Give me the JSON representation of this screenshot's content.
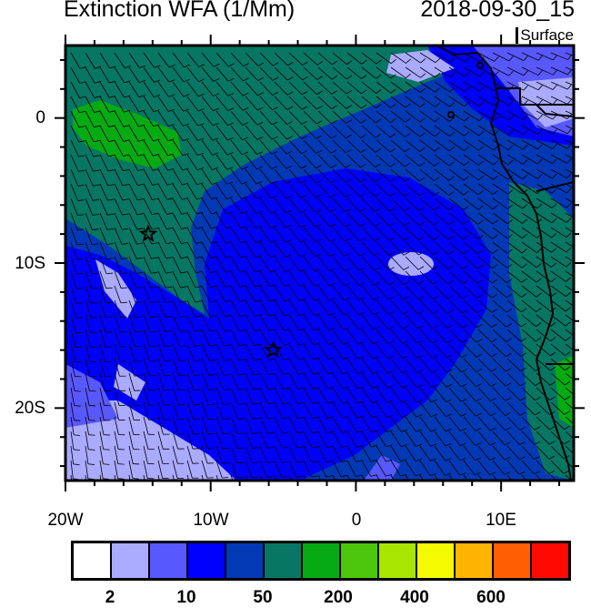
{
  "header": {
    "title": "Extinction WFA (1/Mm)",
    "datetime": "2018-09-30_15",
    "level": "Surface"
  },
  "map": {
    "lon_range": [
      -20,
      15
    ],
    "lat_range": [
      -25,
      5
    ],
    "lon_labels": [
      "20W",
      "10W",
      "0",
      "10E"
    ],
    "lat_labels": [
      "0",
      "10S",
      "20S"
    ],
    "markers": [
      {
        "type": "star",
        "lon": -14.3,
        "lat": -8
      },
      {
        "type": "star",
        "lon": -5.7,
        "lat": -16
      }
    ]
  },
  "colorbar": {
    "colors": [
      "#ffffff",
      "#aaaaff",
      "#5858ff",
      "#0000ff",
      "#0339b5",
      "#077663",
      "#06aa12",
      "#4cc60a",
      "#a6e600",
      "#f4fb00",
      "#ffb400",
      "#ff5f00",
      "#ff0a00"
    ],
    "labels": [
      "2",
      "10",
      "50",
      "200",
      "400",
      "600"
    ]
  }
}
